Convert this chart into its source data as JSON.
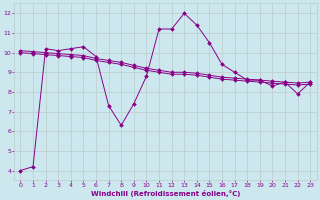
{
  "xlabel": "Windchill (Refroidissement éolien,°C)",
  "background_color": "#cce8ee",
  "line_color": "#880088",
  "grid_color": "#bbcccc",
  "xlim": [
    -0.5,
    23.5
  ],
  "ylim": [
    3.5,
    12.5
  ],
  "yticks": [
    4,
    5,
    6,
    7,
    8,
    9,
    10,
    11,
    12
  ],
  "xticks": [
    0,
    1,
    2,
    3,
    4,
    5,
    6,
    7,
    8,
    9,
    10,
    11,
    12,
    13,
    14,
    15,
    16,
    17,
    18,
    19,
    20,
    21,
    22,
    23
  ],
  "series1_x": [
    0,
    1,
    2,
    3,
    4,
    5,
    6,
    7,
    8,
    9,
    10,
    11,
    12,
    13,
    14,
    15,
    16,
    17,
    18,
    19,
    20,
    21,
    22,
    23
  ],
  "series1_y": [
    4.0,
    4.2,
    10.2,
    10.1,
    10.2,
    10.3,
    9.8,
    7.3,
    6.3,
    7.4,
    8.8,
    11.2,
    11.2,
    12.0,
    11.4,
    10.5,
    9.4,
    9.0,
    8.6,
    8.6,
    8.3,
    8.5,
    7.9,
    8.5
  ],
  "series2_x": [
    0,
    1,
    2,
    3,
    4,
    5,
    6,
    7,
    8,
    9,
    10,
    11,
    12,
    13,
    14,
    15,
    16,
    17,
    18,
    19,
    20,
    21,
    22,
    23
  ],
  "series2_y": [
    10.1,
    10.05,
    10.0,
    9.95,
    9.9,
    9.85,
    9.7,
    9.6,
    9.5,
    9.35,
    9.2,
    9.1,
    9.0,
    9.0,
    8.95,
    8.85,
    8.75,
    8.7,
    8.65,
    8.6,
    8.55,
    8.5,
    8.45,
    8.5
  ],
  "series3_x": [
    0,
    1,
    2,
    3,
    4,
    5,
    6,
    7,
    8,
    9,
    10,
    11,
    12,
    13,
    14,
    15,
    16,
    17,
    18,
    19,
    20,
    21,
    22,
    23
  ],
  "series3_y": [
    10.0,
    9.95,
    9.9,
    9.85,
    9.8,
    9.75,
    9.6,
    9.5,
    9.4,
    9.25,
    9.1,
    9.0,
    8.9,
    8.9,
    8.85,
    8.75,
    8.65,
    8.6,
    8.55,
    8.5,
    8.45,
    8.4,
    8.35,
    8.4
  ]
}
